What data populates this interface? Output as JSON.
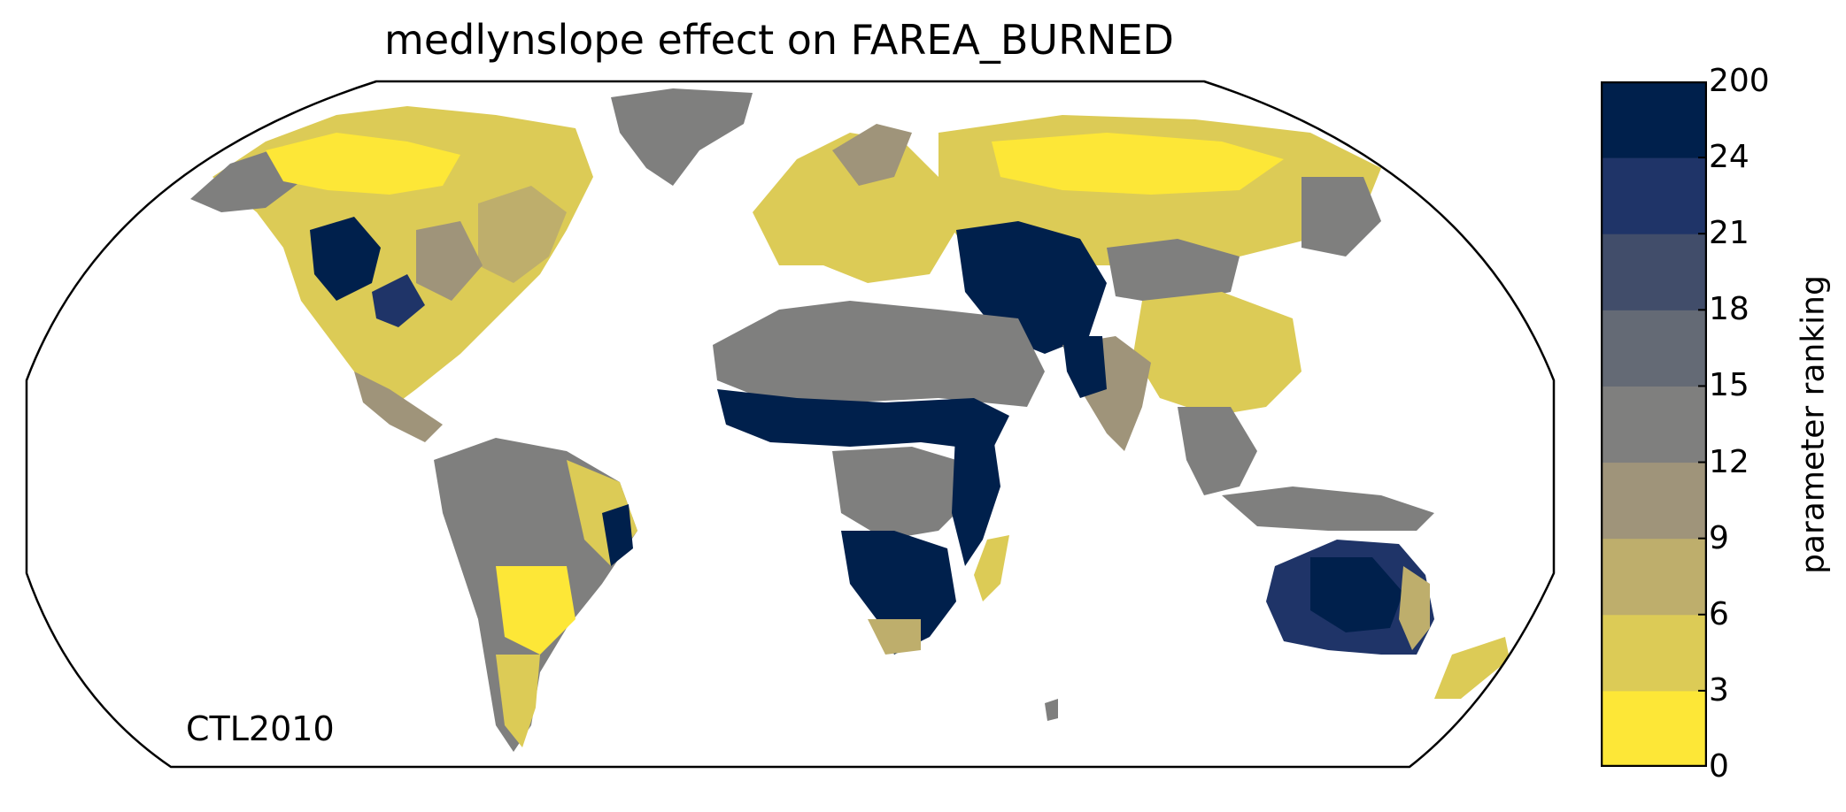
{
  "title": "medlynslope effect on FAREA_BURNED",
  "panel_label": "CTL2010",
  "colorbar": {
    "label": "parameter ranking",
    "ticks": [
      "0",
      "3",
      "6",
      "9",
      "12",
      "15",
      "18",
      "21",
      "24",
      "200"
    ],
    "colors": [
      "#fde737",
      "#dccb56",
      "#beae6c",
      "#9f947a",
      "#7f7f7e",
      "#646a75",
      "#414d6a",
      "#1f3468",
      "#00204c"
    ]
  },
  "legend_map": {
    "rank_colors": {
      "yellow": "#fde737",
      "gold": "#dccb56",
      "khaki": "#beae6c",
      "taupe": "#9f947a",
      "gray": "#7f7f7e",
      "slate": "#646a75",
      "dusk": "#414d6a",
      "blue": "#1f3468",
      "navy": "#00204c"
    }
  }
}
